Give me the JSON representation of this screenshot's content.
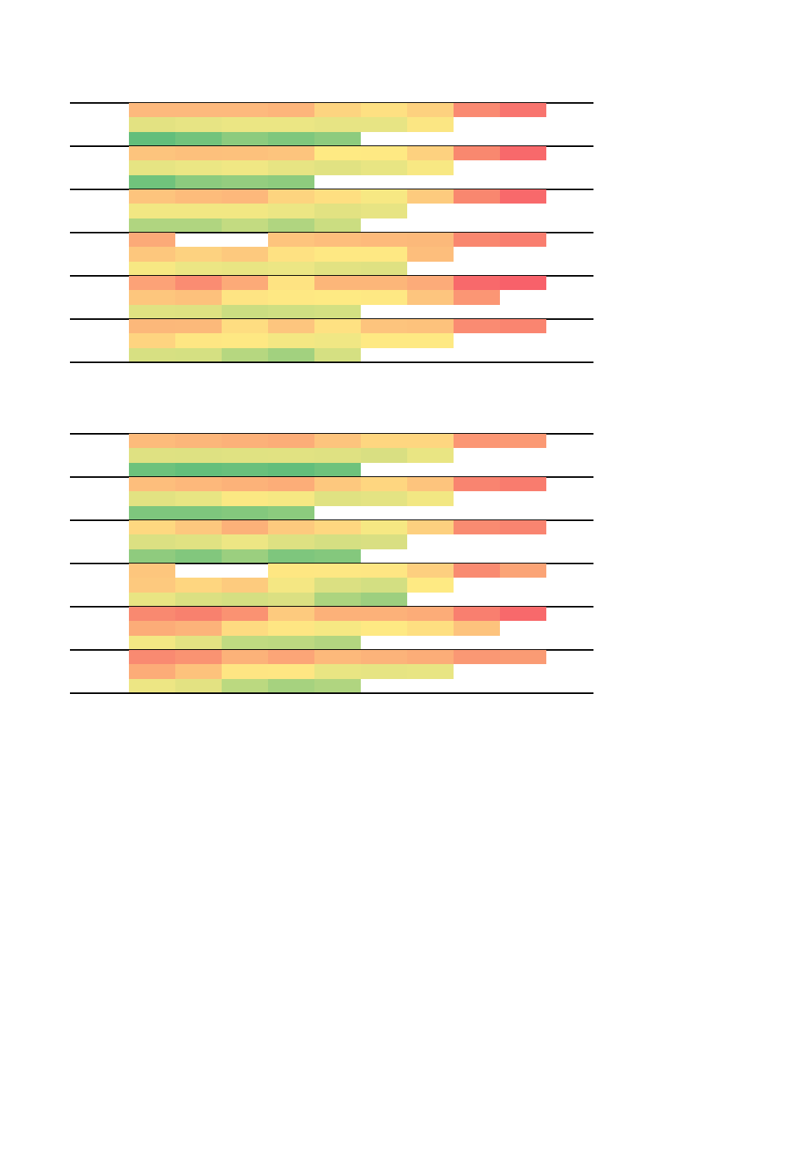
{
  "chart_data": [
    {
      "type": "heatmap",
      "title": "",
      "blocks": [
        [
          [
            "#fdb97d",
            "#fdb97d",
            "#fdb97d",
            "#fdb57b",
            "#fdd480",
            "#fee082",
            "#fdd17f",
            "#fa8a72",
            "#f8746e"
          ],
          [
            "#e3e282",
            "#e7e484",
            "#ebe684",
            "#ebe684",
            "#e7e484",
            "#e7e484",
            "#fbe683",
            null,
            null
          ],
          [
            "#63be7b",
            "#72c37c",
            "#8ccb7e",
            "#7fc77d",
            "#8dcb7e",
            null,
            null,
            null,
            null
          ]
        ],
        [
          [
            "#fdc47d",
            "#fdc07c",
            "#fdc17c",
            "#fdc47d",
            "#feea83",
            "#fee983",
            "#fdd17f",
            "#f9886f",
            "#f8696b"
          ],
          [
            "#e6e483",
            "#ebe684",
            "#f0e784",
            "#e7e483",
            "#e1e282",
            "#e8e583",
            "#f8e883",
            null,
            null
          ],
          [
            "#70c37c",
            "#8ccb7e",
            "#94cd7f",
            "#8ecb7e",
            null,
            null,
            null,
            null,
            null
          ]
        ],
        [
          [
            "#fdc47d",
            "#fdbc7b",
            "#fdb87b",
            "#fdd47f",
            "#fedf81",
            "#f7e883",
            "#fdcb7e",
            "#f9876f",
            "#f8696b"
          ],
          [
            "#f2e783",
            "#f2e783",
            "#f2e783",
            "#ece684",
            "#e2e282",
            "#e7e483",
            null,
            null,
            null
          ],
          [
            "#b0d580",
            "#b0d580",
            "#c3db81",
            "#b0d580",
            "#cbdd81",
            null,
            null,
            null,
            null
          ]
        ],
        [
          [
            "#fcaa78",
            null,
            null,
            "#fdc47d",
            "#fdbe7c",
            "#fdba7b",
            "#fcb97a",
            "#f9876f",
            "#f97e6f"
          ],
          [
            "#fdc77d",
            "#fdd280",
            "#fdc97e",
            "#fee182",
            "#fee883",
            "#fee883",
            "#fdbe7c",
            null,
            null
          ],
          [
            "#f7e883",
            "#ece684",
            "#e9e583",
            "#ece684",
            "#e2e282",
            "#dfe182",
            null,
            null,
            null
          ]
        ],
        [
          [
            "#fca277",
            "#fa8c72",
            "#fcaa78",
            "#fee382",
            "#fcb679",
            "#fcb679",
            "#fcab79",
            "#f8696b",
            "#f8616a"
          ],
          [
            "#fdc67d",
            "#fdc17c",
            "#fee483",
            "#fee883",
            "#feea83",
            "#fee883",
            "#fdc57e",
            "#fb9674",
            null
          ],
          [
            "#e0e282",
            "#dfe182",
            "#cbdd81",
            "#cfdf82",
            "#d3e082",
            null,
            null,
            null,
            null
          ]
        ],
        [
          [
            "#fcb87a",
            "#fcb97a",
            "#fedd81",
            "#fdc57e",
            "#fee182",
            "#fdc47d",
            "#fdc27c",
            "#fa8b72",
            "#fa8570"
          ],
          [
            "#fed480",
            "#fee683",
            "#fee883",
            "#f4e783",
            "#f0e784",
            "#fee983",
            "#fee983",
            null,
            null
          ],
          [
            "#d7e082",
            "#d5e082",
            "#b6d780",
            "#a2d17f",
            "#d5e082",
            null,
            null,
            null,
            null
          ]
        ]
      ]
    },
    {
      "type": "heatmap",
      "title": "",
      "blocks": [
        [
          [
            "#fdbb7b",
            "#fcb67a",
            "#fcb179",
            "#fcad78",
            "#fdc47d",
            "#fed680",
            "#fed680",
            "#fb9674",
            "#fb9974"
          ],
          [
            "#dfe182",
            "#dee182",
            "#e0e282",
            "#e1e282",
            "#dfe182",
            "#d9df82",
            "#e9e583",
            null,
            null
          ],
          [
            "#6dc27c",
            "#64bf7b",
            "#69c07c",
            "#63be7b",
            "#6ec27c",
            null,
            null,
            null,
            null
          ]
        ],
        [
          [
            "#fdbe7c",
            "#fdb87b",
            "#fcb279",
            "#fcad78",
            "#fdc87e",
            "#fed680",
            "#fdc47d",
            "#f98470",
            "#f97c6e"
          ],
          [
            "#e2e282",
            "#e8e583",
            "#fbe883",
            "#f6e883",
            "#e0e282",
            "#e4e383",
            "#f2e783",
            null,
            null
          ],
          [
            "#7ec67d",
            "#7ec67d",
            "#84c87d",
            "#8ccb7e",
            null,
            null,
            null,
            null,
            null
          ]
        ],
        [
          [
            "#fed880",
            "#fdc87e",
            "#fcb179",
            "#fdca7e",
            "#fed780",
            "#f6e883",
            "#fdd07f",
            "#f98b71",
            "#f98470"
          ],
          [
            "#dbe082",
            "#e0e282",
            "#ede684",
            "#dee182",
            "#d5df82",
            "#d9df82",
            null,
            null,
            null
          ],
          [
            "#8fcb7e",
            "#82c77d",
            "#9bcf7f",
            "#7ec67d",
            "#84c87d",
            null,
            null,
            null,
            null
          ]
        ],
        [
          [
            "#fdc67d",
            null,
            null,
            "#fee782",
            "#fee783",
            "#fee683",
            "#fdcf7f",
            "#f98b71",
            "#fba476"
          ],
          [
            "#fdc97e",
            "#fed680",
            "#fdcb7e",
            "#f4e783",
            "#dbe082",
            "#d3df82",
            "#feea83",
            null,
            null
          ],
          [
            "#e9e583",
            "#dbe082",
            "#d5df82",
            "#dbe082",
            "#acd47f",
            "#9dcf7f",
            null,
            null,
            null
          ]
        ],
        [
          [
            "#f98970",
            "#f8816e",
            "#fa9272",
            "#fdca7e",
            "#fcb179",
            "#fcb179",
            "#fcac78",
            "#f97f6f",
            "#f8696b"
          ],
          [
            "#fcac78",
            "#fcb37a",
            "#fedb81",
            "#fee683",
            "#f6e883",
            "#fee983",
            "#fedf81",
            "#fdc37d",
            null
          ],
          [
            "#f3e783",
            "#e3e282",
            "#c0da81",
            "#bdd980",
            "#b3d580",
            null,
            null,
            null,
            null
          ]
        ],
        [
          [
            "#f98a71",
            "#fa9372",
            "#fcb279",
            "#fca577",
            "#fdb97b",
            "#fcb37a",
            "#fcad78",
            "#fa9874",
            "#fa9b74"
          ],
          [
            "#fcac78",
            "#fdc27c",
            "#fee583",
            "#fee683",
            "#e9e583",
            "#e6e483",
            "#e8e583",
            null,
            null
          ],
          [
            "#ede684",
            "#e3e282",
            "#bbd980",
            "#a6d27f",
            "#b0d580",
            null,
            null,
            null,
            null
          ]
        ]
      ]
    }
  ]
}
